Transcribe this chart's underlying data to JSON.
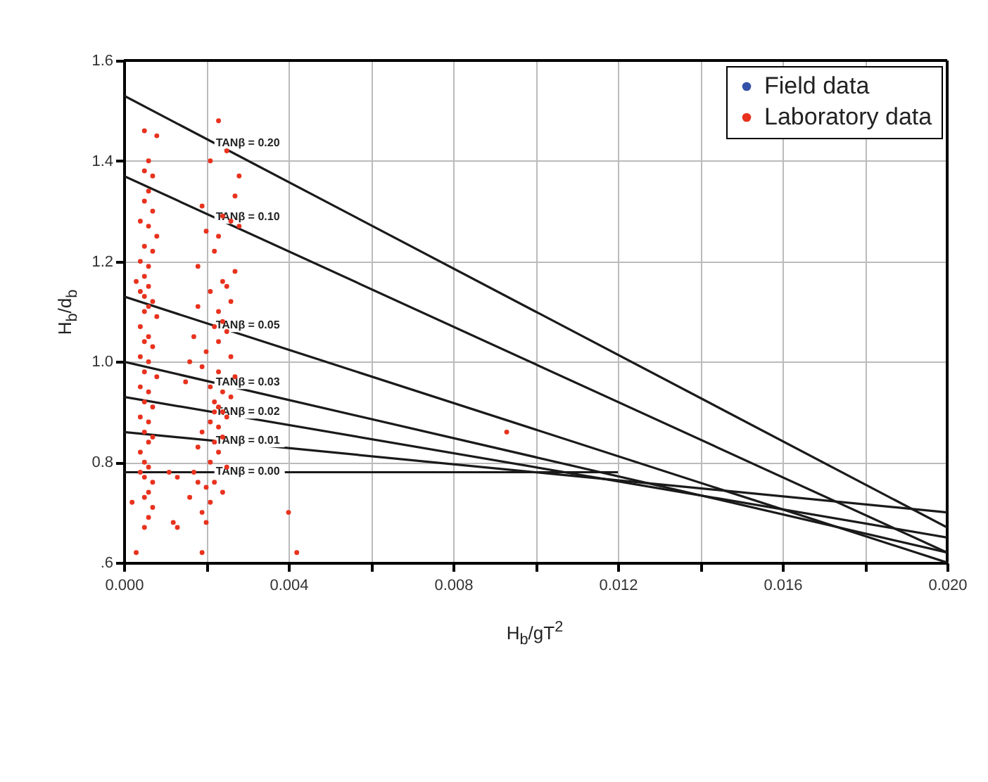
{
  "chart_data": {
    "type": "scatter",
    "xlabel": "H$_{b}$/gT$^{2}$",
    "ylabel": "H$_{b}$/d$_{b}$",
    "xlim": [
      0,
      0.02
    ],
    "ylim": [
      0.6,
      1.6
    ],
    "xticks": [
      {
        "value": 0,
        "label": "0.000"
      },
      {
        "value": 0.002,
        "label": null
      },
      {
        "value": 0.004,
        "label": "0.004"
      },
      {
        "value": 0.006,
        "label": null
      },
      {
        "value": 0.008,
        "label": "0.008"
      },
      {
        "value": 0.01,
        "label": null
      },
      {
        "value": 0.012,
        "label": "0.012"
      },
      {
        "value": 0.014,
        "label": null
      },
      {
        "value": 0.016,
        "label": "0.016"
      },
      {
        "value": 0.018,
        "label": null
      },
      {
        "value": 0.02,
        "label": "0.020"
      }
    ],
    "yticks": [
      {
        "value": 0.6,
        "label": ".6"
      },
      {
        "value": 0.8,
        "label": "0.8"
      },
      {
        "value": 1,
        "label": "1.0"
      },
      {
        "value": 1.2,
        "label": "1.2"
      },
      {
        "value": 1.4,
        "label": "1.4"
      },
      {
        "value": 1.6,
        "label": "1.6"
      }
    ],
    "grid": true,
    "legend": "top right",
    "series": [
      {
        "name": "Field data",
        "color": "#3352a8"
      },
      {
        "name": "Laboratory data",
        "color": "#e8321e",
        "x": [
          0.0005,
          0.0008,
          0.0006,
          0.0005,
          0.0007,
          0.0006,
          0.0005,
          0.0007,
          0.0004,
          0.0006,
          0.0008,
          0.0005,
          0.0007,
          0.0004,
          0.0006,
          0.0005,
          0.0003,
          0.0006,
          0.0004,
          0.0005,
          0.0007,
          0.0006,
          0.0005,
          0.0008,
          0.0004,
          0.0006,
          0.0005,
          0.0007,
          0.0004,
          0.0006,
          0.0005,
          0.0008,
          0.0004,
          0.0006,
          0.0005,
          0.0007,
          0.0004,
          0.0006,
          0.0005,
          0.0007,
          0.0006,
          0.0004,
          0.0005,
          0.0006,
          0.0004,
          0.0005,
          0.0007,
          0.0006,
          0.0005,
          0.0007,
          0.0006,
          0.0005,
          0.0002,
          0.0003,
          0.0011,
          0.0013,
          0.0013,
          0.0012,
          0.0016,
          0.0018,
          0.0023,
          0.0021,
          0.0025,
          0.0028,
          0.0027,
          0.0019,
          0.0024,
          0.0026,
          0.0028,
          0.002,
          0.0023,
          0.0022,
          0.0018,
          0.0027,
          0.0024,
          0.0025,
          0.0021,
          0.0026,
          0.0018,
          0.0023,
          0.0024,
          0.0022,
          0.0025,
          0.0017,
          0.0023,
          0.002,
          0.0026,
          0.0016,
          0.0019,
          0.0023,
          0.0027,
          0.0015,
          0.0021,
          0.0024,
          0.0026,
          0.0022,
          0.0023,
          0.0024,
          0.0022,
          0.0025,
          0.0021,
          0.0023,
          0.0019,
          0.0024,
          0.0022,
          0.0018,
          0.0023,
          0.0021,
          0.0025,
          0.0017,
          0.0022,
          0.002,
          0.0024,
          0.0021,
          0.0019,
          0.002,
          0.0019,
          0.0093,
          0.004,
          0.0042
        ],
        "values": [
          1.46,
          1.45,
          1.4,
          1.38,
          1.37,
          1.34,
          1.32,
          1.3,
          1.28,
          1.27,
          1.25,
          1.23,
          1.22,
          1.2,
          1.19,
          1.17,
          1.16,
          1.15,
          1.14,
          1.13,
          1.12,
          1.11,
          1.1,
          1.09,
          1.07,
          1.05,
          1.04,
          1.03,
          1.01,
          1.0,
          0.98,
          0.97,
          0.95,
          0.94,
          0.92,
          0.91,
          0.89,
          0.88,
          0.86,
          0.85,
          0.84,
          0.82,
          0.8,
          0.79,
          0.78,
          0.77,
          0.76,
          0.74,
          0.73,
          0.71,
          0.69,
          0.67,
          0.72,
          0.62,
          0.78,
          0.77,
          0.67,
          0.68,
          0.73,
          0.76,
          1.48,
          1.4,
          1.42,
          1.37,
          1.33,
          1.31,
          1.29,
          1.28,
          1.27,
          1.26,
          1.25,
          1.22,
          1.19,
          1.18,
          1.16,
          1.15,
          1.14,
          1.12,
          1.11,
          1.1,
          1.08,
          1.07,
          1.06,
          1.05,
          1.04,
          1.02,
          1.01,
          1.0,
          0.99,
          0.98,
          0.97,
          0.96,
          0.95,
          0.94,
          0.93,
          0.92,
          0.91,
          0.9,
          0.9,
          0.89,
          0.88,
          0.87,
          0.86,
          0.85,
          0.84,
          0.83,
          0.82,
          0.8,
          0.79,
          0.78,
          0.76,
          0.75,
          0.74,
          0.72,
          0.7,
          0.68,
          0.62,
          0.86,
          0.7,
          0.62
        ]
      },
      {
        "name": "TANβ = 0.20",
        "type": "line",
        "color": "#1a1a1a",
        "x": [
          0,
          0.02
        ],
        "values": [
          1.53,
          0.67
        ]
      },
      {
        "name": "TANβ = 0.10",
        "type": "line",
        "color": "#1a1a1a",
        "x": [
          0,
          0.02
        ],
        "values": [
          1.37,
          0.62
        ]
      },
      {
        "name": "TANβ = 0.05",
        "type": "line",
        "color": "#1a1a1a",
        "x": [
          0,
          0.02
        ],
        "values": [
          1.13,
          0.6
        ]
      },
      {
        "name": "TANβ = 0.03",
        "type": "line",
        "color": "#1a1a1a",
        "x": [
          0,
          0.02
        ],
        "values": [
          1.0,
          0.62
        ]
      },
      {
        "name": "TANβ = 0.02",
        "type": "line",
        "color": "#1a1a1a",
        "x": [
          0,
          0.02
        ],
        "values": [
          0.93,
          0.65
        ]
      },
      {
        "name": "TANβ = 0.01",
        "type": "line",
        "color": "#1a1a1a",
        "x": [
          0,
          0.02
        ],
        "values": [
          0.86,
          0.7
        ]
      },
      {
        "name": "TANβ = 0.00",
        "type": "line",
        "color": "#1a1a1a",
        "x": [
          0,
          0.012
        ],
        "values": [
          0.78,
          0.78
        ]
      }
    ]
  }
}
